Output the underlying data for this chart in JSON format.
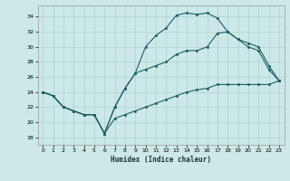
{
  "xlabel": "Humidex (Indice chaleur)",
  "bg_color": "#cce8e8",
  "grid_color": "#b0d0d0",
  "line_color": "#1a6060",
  "xlim": [
    -0.5,
    23.5
  ],
  "ylim": [
    17.0,
    35.5
  ],
  "xticks": [
    0,
    1,
    2,
    3,
    4,
    5,
    6,
    7,
    8,
    9,
    10,
    11,
    12,
    13,
    14,
    15,
    16,
    17,
    18,
    19,
    20,
    21,
    22,
    23
  ],
  "yticks": [
    18,
    20,
    22,
    24,
    26,
    28,
    30,
    32,
    34
  ],
  "line1_x": [
    0,
    1,
    2,
    3,
    4,
    5,
    6,
    7,
    8,
    9,
    10,
    11,
    12,
    13,
    14,
    15,
    16,
    17,
    18,
    19,
    20,
    21,
    22,
    23
  ],
  "line1_y": [
    24,
    23.5,
    22,
    21.5,
    21,
    21,
    18.5,
    22,
    24.5,
    26.5,
    30,
    31.5,
    32.5,
    34.2,
    34.5,
    34.3,
    34.5,
    33.8,
    32,
    31,
    30,
    29.5,
    27,
    25.5
  ],
  "line2_x": [
    0,
    1,
    2,
    3,
    4,
    5,
    6,
    7,
    8,
    9,
    10,
    11,
    12,
    13,
    14,
    15,
    16,
    17,
    18,
    19,
    20,
    21,
    22,
    23
  ],
  "line2_y": [
    24,
    23.5,
    22,
    21.5,
    21,
    21,
    18.5,
    22,
    24.5,
    26.5,
    27,
    27.5,
    28,
    29,
    29.5,
    29.5,
    30,
    31.8,
    32,
    31,
    30.5,
    30,
    27.5,
    25.5
  ],
  "line3_x": [
    0,
    1,
    2,
    3,
    4,
    5,
    6,
    7,
    8,
    9,
    10,
    11,
    12,
    13,
    14,
    15,
    16,
    17,
    18,
    19,
    20,
    21,
    22,
    23
  ],
  "line3_y": [
    24,
    23.5,
    22,
    21.5,
    21,
    21,
    18.5,
    20.5,
    21,
    21.5,
    22,
    22.5,
    23,
    23.5,
    24,
    24.3,
    24.5,
    25,
    25,
    25,
    25,
    25,
    25,
    25.5
  ]
}
